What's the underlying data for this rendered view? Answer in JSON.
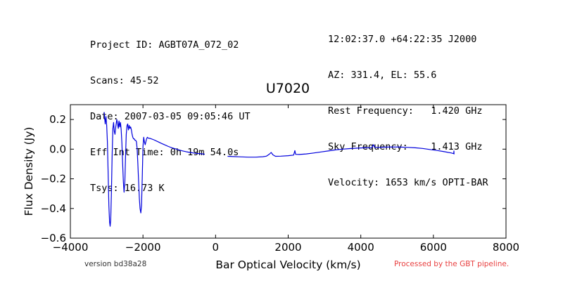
{
  "header": {
    "left": [
      "Project ID: AGBT07A_072_02",
      "Scans: 45-52",
      "Date: 2007-03-05 09:05:46 UT",
      "Eff Int Time: 0h 19m 54.0s",
      "Tsys: 16.73 K"
    ],
    "right": [
      "12:02:37.0 +64:22:35 J2000",
      "AZ: 331.4, EL: 55.6",
      "Rest Frequency:   1.420 GHz",
      "Sky Frequency:    1.413 GHz",
      "Velocity: 1653 km/s OPTI-BAR"
    ]
  },
  "footer": {
    "version": "version bd38a28",
    "pipeline": "Processed by the GBT pipeline."
  },
  "chart_data": {
    "type": "line",
    "title": "U7020",
    "xlabel": "Bar Optical Velocity (km/s)",
    "ylabel": "Flux Density (Jy)",
    "xlim": [
      -4000,
      8000
    ],
    "ylim": [
      -0.6,
      0.3
    ],
    "xticks": [
      -4000,
      -2000,
      0,
      2000,
      4000,
      6000,
      8000
    ],
    "xtick_labels": [
      "−4000",
      "−2000",
      "0",
      "2000",
      "4000",
      "6000",
      "8000"
    ],
    "yticks": [
      -0.6,
      -0.4,
      -0.2,
      0.0,
      0.2
    ],
    "ytick_labels": [
      "−0.6",
      "−0.4",
      "−0.2",
      "0.0",
      "0.2"
    ],
    "line_color": "#0000dd",
    "grid": false,
    "series": [
      {
        "segments": [
          [
            [
              -3070,
              0.25
            ],
            [
              -3040,
              0.17
            ],
            [
              -3020,
              0.22
            ],
            [
              -3000,
              0.16
            ],
            [
              -2980,
              0.05
            ],
            [
              -2960,
              -0.15
            ],
            [
              -2940,
              -0.38
            ],
            [
              -2920,
              -0.49
            ],
            [
              -2905,
              -0.52
            ],
            [
              -2890,
              -0.48
            ],
            [
              -2870,
              -0.3
            ],
            [
              -2850,
              -0.05
            ],
            [
              -2830,
              0.14
            ],
            [
              -2810,
              0.18
            ],
            [
              -2790,
              0.12
            ],
            [
              -2770,
              0.1
            ],
            [
              -2750,
              0.15
            ],
            [
              -2720,
              0.2
            ],
            [
              -2700,
              0.17
            ],
            [
              -2680,
              0.14
            ],
            [
              -2660,
              0.19
            ],
            [
              -2640,
              0.15
            ],
            [
              -2620,
              0.18
            ],
            [
              -2600,
              0.13
            ],
            [
              -2580,
              0.04
            ],
            [
              -2560,
              -0.1
            ],
            [
              -2540,
              -0.22
            ],
            [
              -2520,
              -0.29
            ],
            [
              -2500,
              -0.22
            ],
            [
              -2480,
              -0.05
            ],
            [
              -2460,
              0.1
            ],
            [
              -2440,
              0.16
            ],
            [
              -2420,
              0.17
            ],
            [
              -2400,
              0.13
            ],
            [
              -2380,
              0.16
            ],
            [
              -2360,
              0.14
            ],
            [
              -2340,
              0.15
            ],
            [
              -2320,
              0.13
            ],
            [
              -2300,
              0.1
            ],
            [
              -2280,
              0.08
            ],
            [
              -2260,
              0.07
            ],
            [
              -2240,
              0.07
            ],
            [
              -2220,
              0.06
            ],
            [
              -2200,
              0.06
            ],
            [
              -2180,
              0.05
            ],
            [
              -2160,
              0.0
            ],
            [
              -2140,
              -0.1
            ],
            [
              -2120,
              -0.22
            ],
            [
              -2100,
              -0.33
            ],
            [
              -2080,
              -0.4
            ],
            [
              -2060,
              -0.43
            ],
            [
              -2040,
              -0.38
            ],
            [
              -2020,
              -0.2
            ],
            [
              -2000,
              0.02
            ],
            [
              -1980,
              0.08
            ],
            [
              -1960,
              0.05
            ],
            [
              -1940,
              0.03
            ],
            [
              -1920,
              0.05
            ],
            [
              -1900,
              0.07
            ],
            [
              -1880,
              0.08
            ],
            [
              -1860,
              0.075
            ],
            [
              -1800,
              0.072
            ],
            [
              -1700,
              0.063
            ],
            [
              -1600,
              0.052
            ],
            [
              -1500,
              0.04
            ],
            [
              -1400,
              0.029
            ],
            [
              -1300,
              0.018
            ],
            [
              -1200,
              0.009
            ],
            [
              -1100,
              0.002
            ],
            [
              -1000,
              -0.006
            ],
            [
              -900,
              -0.012
            ],
            [
              -800,
              -0.018
            ],
            [
              -700,
              -0.022
            ],
            [
              -600,
              -0.026
            ],
            [
              -500,
              -0.029
            ],
            [
              -400,
              -0.031
            ],
            [
              -300,
              -0.034
            ]
          ],
          [
            [
              330,
              -0.048
            ],
            [
              500,
              -0.05
            ],
            [
              700,
              -0.052
            ],
            [
              900,
              -0.054
            ],
            [
              1100,
              -0.054
            ],
            [
              1300,
              -0.051
            ],
            [
              1400,
              -0.047
            ],
            [
              1480,
              -0.034
            ],
            [
              1530,
              -0.022
            ],
            [
              1580,
              -0.038
            ],
            [
              1650,
              -0.048
            ],
            [
              1800,
              -0.047
            ],
            [
              2000,
              -0.044
            ],
            [
              2150,
              -0.04
            ],
            [
              2185,
              -0.01
            ],
            [
              2205,
              -0.035
            ],
            [
              2300,
              -0.036
            ],
            [
              2500,
              -0.032
            ],
            [
              2700,
              -0.026
            ],
            [
              2900,
              -0.019
            ],
            [
              3100,
              -0.012
            ],
            [
              3300,
              -0.005
            ],
            [
              3500,
              0.0
            ],
            [
              3700,
              0.004
            ],
            [
              3900,
              0.007
            ],
            [
              4100,
              0.009
            ],
            [
              4300,
              0.01
            ],
            [
              4350,
              0.03
            ],
            [
              4380,
              0.012
            ],
            [
              4500,
              0.012
            ],
            [
              4700,
              0.014
            ],
            [
              4900,
              0.015
            ],
            [
              5100,
              0.014
            ],
            [
              5300,
              0.012
            ],
            [
              5500,
              0.009
            ],
            [
              5700,
              0.005
            ],
            [
              5900,
              -0.002
            ],
            [
              6100,
              -0.009
            ],
            [
              6300,
              -0.017
            ],
            [
              6500,
              -0.026
            ],
            [
              6560,
              -0.03
            ],
            [
              6565,
              -0.012
            ],
            [
              6570,
              -0.035
            ]
          ]
        ]
      }
    ]
  }
}
